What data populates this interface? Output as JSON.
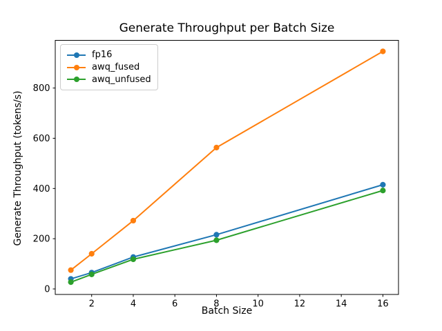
{
  "chart_data": {
    "type": "line",
    "title": "Generate Throughput per Batch Size",
    "xlabel": "Batch Size",
    "ylabel": "Generate Throughput (tokens/s)",
    "x": [
      1,
      2,
      4,
      8,
      16
    ],
    "series": [
      {
        "name": "fp16",
        "color": "#1f77b4",
        "values": [
          40,
          65,
          127,
          216,
          415
        ]
      },
      {
        "name": "awq_fused",
        "color": "#ff7f0e",
        "values": [
          75,
          140,
          272,
          563,
          946
        ]
      },
      {
        "name": "awq_unfused",
        "color": "#2ca02c",
        "values": [
          27,
          58,
          118,
          194,
          392
        ]
      }
    ],
    "xlim": [
      0.25,
      16.75
    ],
    "ylim": [
      -22,
      990
    ],
    "xticks": [
      2,
      4,
      6,
      8,
      10,
      12,
      14,
      16
    ],
    "yticks": [
      0,
      200,
      400,
      600,
      800
    ],
    "legend": {
      "position": "upper-left",
      "entries": [
        "fp16",
        "awq_fused",
        "awq_unfused"
      ]
    },
    "grid": false,
    "marker": "circle",
    "background": "#ffffff",
    "axis_color": "#000000"
  }
}
